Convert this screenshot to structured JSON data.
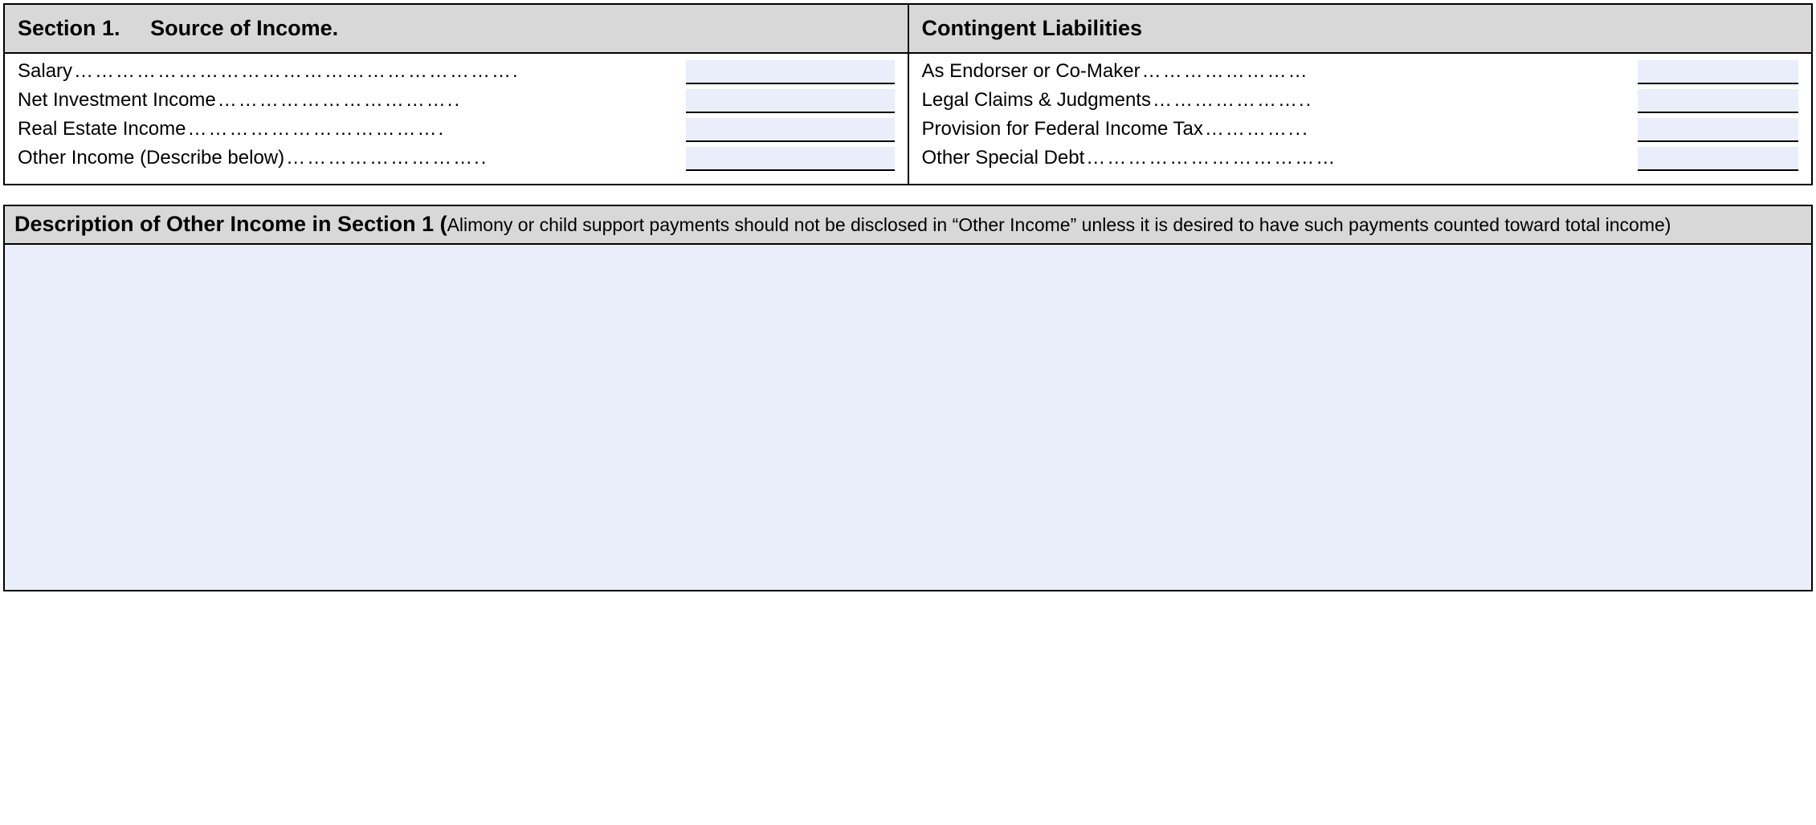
{
  "colors": {
    "header_bg": "#d8d8d8",
    "input_bg": "#eaedfa",
    "border": "#000000",
    "page_bg": "#ffffff",
    "text": "#000000"
  },
  "typography": {
    "header_fontsize_pt": 20,
    "body_fontsize_pt": 18,
    "subnote_fontsize_pt": 17,
    "font_family": "Arial"
  },
  "leftColumn": {
    "sectionLabel": "Section 1.",
    "headerTitle": "Source of Income.",
    "rows": [
      {
        "label": "Salary",
        "dots": "……………………………………………………….",
        "value": ""
      },
      {
        "label": "Net Investment Income",
        "dots": "……………………………..",
        "value": ""
      },
      {
        "label": "Real Estate Income",
        "dots": "……………………………….",
        "value": ""
      },
      {
        "label": "Other Income (Describe below)",
        "dots": "………………………..",
        "value": ""
      }
    ]
  },
  "rightColumn": {
    "headerTitle": "Contingent Liabilities",
    "rows": [
      {
        "label": "As Endorser or Co-Maker",
        "dots": "……………………",
        "value": ""
      },
      {
        "label": "Legal Claims & Judgments",
        "dots": "…………………..",
        "value": ""
      },
      {
        "label": "Provision for Federal Income Tax",
        "dots": "…………...",
        "value": ""
      },
      {
        "label": "Other Special Debt",
        "dots": "………………………………",
        "value": ""
      }
    ]
  },
  "descriptionSection": {
    "title": "Description of Other Income in Section 1 (",
    "subnote": "Alimony or child support payments should not be disclosed in “Other Income” unless it is desired to have such payments counted toward total income)",
    "value": ""
  }
}
